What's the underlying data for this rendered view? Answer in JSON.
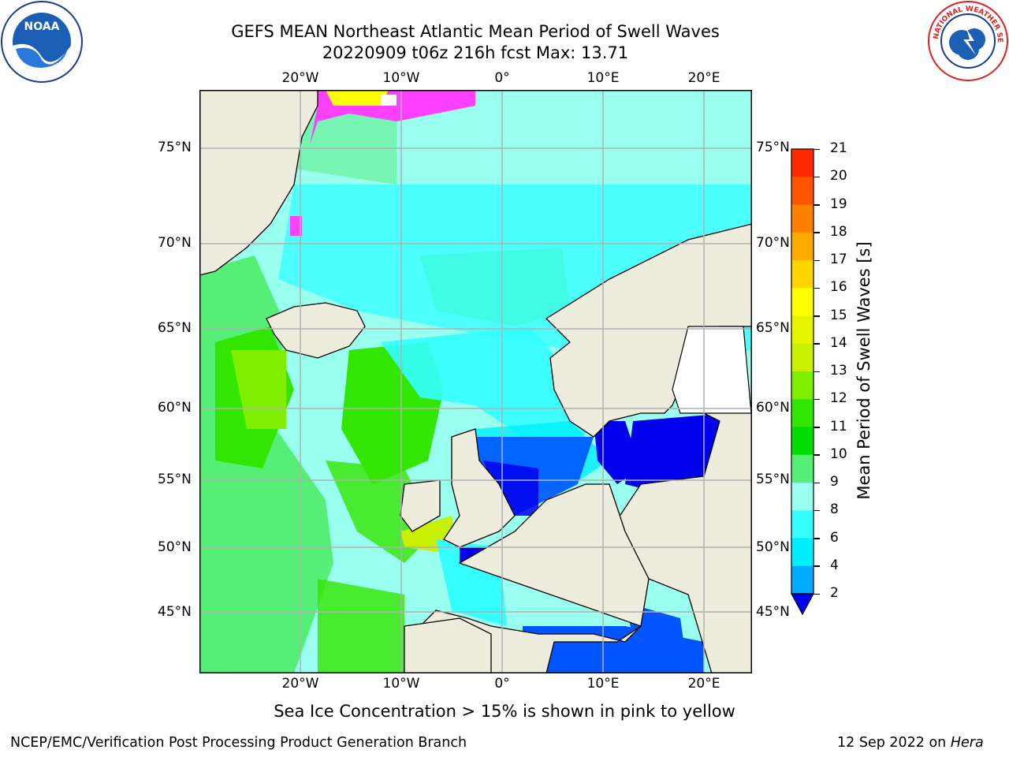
{
  "header": {
    "title_line1": "GEFS MEAN Northeast Atlantic Mean Period of Swell Waves",
    "title_line2": "20220909 t06z 216h fcst   Max: 13.71"
  },
  "logos": {
    "left": {
      "icon": "noaa-logo",
      "text": "NOAA"
    },
    "right": {
      "icon": "nws-logo",
      "text": "NATIONAL WEATHER SERVICE"
    }
  },
  "map": {
    "lon_labels": [
      "20°W",
      "10°W",
      "0°",
      "10°E",
      "20°E"
    ],
    "lat_labels": [
      "75°N",
      "70°N",
      "65°N",
      "60°N",
      "55°N",
      "50°N",
      "45°N"
    ],
    "colors": {
      "land": "#eeecdc",
      "grid": "#b0b0b0",
      "coast": "#000000",
      "sea_ice": "#ff40ff"
    }
  },
  "colorbar": {
    "title": "Mean Period of Swell Waves [s]",
    "ticks": [
      "21",
      "20",
      "19",
      "18",
      "17",
      "16",
      "15",
      "14",
      "13",
      "12",
      "11",
      "10",
      "9",
      "8",
      "6",
      "4",
      "2"
    ],
    "colors": [
      "#fe0000",
      "#ff2a00",
      "#ff5500",
      "#ff8000",
      "#ffaa00",
      "#ffd400",
      "#fefe00",
      "#e6f500",
      "#c8f000",
      "#80ee00",
      "#33e600",
      "#00dd00",
      "#55ee77",
      "#99ffee",
      "#33ffff",
      "#00eeff",
      "#00aaff",
      "#0055ff",
      "#0000ee"
    ]
  },
  "caption": "Sea Ice Concentration > 15% is shown in pink to yellow",
  "footer": {
    "left": "NCEP/EMC/Verification Post Processing Product Generation Branch",
    "right_prefix": "12 Sep 2022 on ",
    "right_host": "Hera"
  }
}
